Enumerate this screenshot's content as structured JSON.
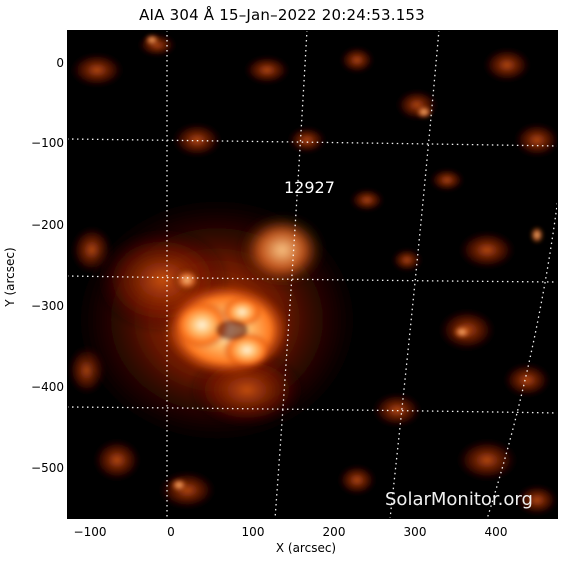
{
  "header": {
    "title": "AIA 304 Å 15–Jan–2022 20:24:53.153"
  },
  "axes": {
    "xlabel": "X (arcsec)",
    "ylabel": "Y (arcsec)",
    "x_ticks": [
      "−100",
      "0",
      "100",
      "200",
      "300",
      "400"
    ],
    "y_ticks": [
      "0",
      "−100",
      "−200",
      "−300",
      "−400",
      "−500"
    ]
  },
  "annotation": {
    "active_region": "12927"
  },
  "watermark": {
    "text": "SolarMonitor.org"
  },
  "colors": {
    "background": "#000000",
    "hot": "#ffffff",
    "mid": "#e05010",
    "dim": "#5a0c00"
  }
}
